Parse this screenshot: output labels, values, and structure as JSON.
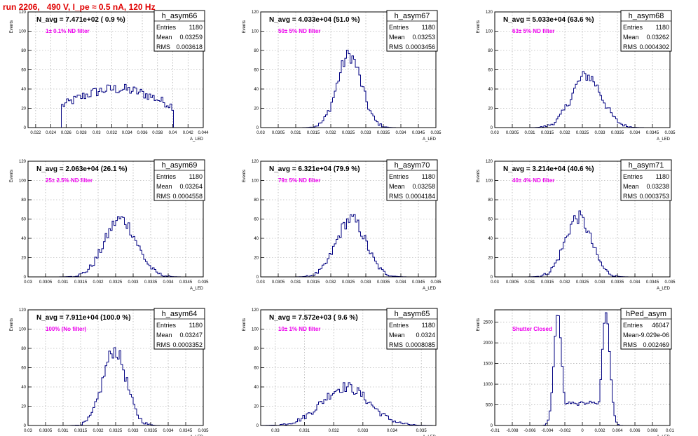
{
  "page": {
    "run_title": "run 2206,   490 V, I_pe ≈ 0.5 nA, 120 Hz"
  },
  "colors": {
    "histogram_line": "#000080",
    "frame": "#000000",
    "grid": "#9a9a9a",
    "run_title": "#e00000",
    "annotation": "#ee00ee",
    "navg": "#000000"
  },
  "chart_data": [
    {
      "type": "histogram",
      "name": "h_asym66",
      "ylabel": "Events",
      "xlabel": "A_LED",
      "navg": "N_avg = 7.471e+02 ( 0.9 %)",
      "annotation": "1± 0.1% ND filter",
      "stats": {
        "entries_label": "Entries",
        "entries": "1180",
        "mean_label": "Mean",
        "mean": "0.03259",
        "rms_label": "RMS",
        "rms": "0.003618"
      },
      "xlim": [
        0.021,
        0.044
      ],
      "xticks": [
        "0.022",
        "0.024",
        "0.026",
        "0.028",
        "0.03",
        "0.032",
        "0.034",
        "0.036",
        "0.038",
        "0.04",
        "0.042",
        "0.044"
      ],
      "ylim": [
        0,
        120
      ],
      "yticks": [
        "0",
        "20",
        "40",
        "60",
        "80",
        "100",
        "120"
      ],
      "shape": {
        "kind": "uniform",
        "lo": 0.0253,
        "hi": 0.04,
        "peak": 40
      }
    },
    {
      "type": "histogram",
      "name": "h_asym67",
      "ylabel": "Events",
      "xlabel": "A_LED",
      "navg": "N_avg = 4.033e+04 (51.0 %)",
      "annotation": "50± 5% ND filter",
      "stats": {
        "entries_label": "Entries",
        "entries": "1180",
        "mean_label": "Mean",
        "mean": "0.03253",
        "rms_label": "RMS",
        "rms": "0.0003456"
      },
      "xlim": [
        0.03,
        0.035
      ],
      "xticks": [
        "0.03",
        "0.0305",
        "0.031",
        "0.0315",
        "0.032",
        "0.0325",
        "0.033",
        "0.0335",
        "0.034",
        "0.0345",
        "0.035"
      ],
      "ylim": [
        0,
        120
      ],
      "yticks": [
        "0",
        "20",
        "40",
        "60",
        "80",
        "100",
        "120"
      ],
      "shape": {
        "kind": "gauss",
        "mean": 0.03253,
        "sigma": 0.0003456,
        "peak": 75
      }
    },
    {
      "type": "histogram",
      "name": "h_asym68",
      "ylabel": "Events",
      "xlabel": "A_LED",
      "navg": "N_avg = 5.033e+04 (63.6 %)",
      "annotation": "63± 5% ND filter",
      "stats": {
        "entries_label": "Entries",
        "entries": "1180",
        "mean_label": "Mean",
        "mean": "0.03262",
        "rms_label": "RMS",
        "rms": "0.0004302"
      },
      "xlim": [
        0.03,
        0.035
      ],
      "xticks": [
        "0.03",
        "0.0305",
        "0.031",
        "0.0315",
        "0.032",
        "0.0325",
        "0.033",
        "0.0335",
        "0.034",
        "0.0345",
        "0.035"
      ],
      "ylim": [
        0,
        120
      ],
      "yticks": [
        "0",
        "20",
        "40",
        "60",
        "80",
        "100",
        "120"
      ],
      "shape": {
        "kind": "gauss",
        "mean": 0.03262,
        "sigma": 0.0004302,
        "peak": 54
      }
    },
    {
      "type": "histogram",
      "name": "h_asym69",
      "ylabel": "Events",
      "xlabel": "A_LED",
      "navg": "N_avg = 2.063e+04 (26.1 %)",
      "annotation": "25± 2.5% ND filter",
      "stats": {
        "entries_label": "Entries",
        "entries": "1180",
        "mean_label": "Mean",
        "mean": "0.03264",
        "rms_label": "RMS",
        "rms": "0.0004558"
      },
      "xlim": [
        0.03,
        0.035
      ],
      "xticks": [
        "0.03",
        "0.0305",
        "0.031",
        "0.0315",
        "0.032",
        "0.0325",
        "0.033",
        "0.0335",
        "0.034",
        "0.0345",
        "0.035"
      ],
      "ylim": [
        0,
        120
      ],
      "yticks": [
        "0",
        "20",
        "40",
        "60",
        "80",
        "100",
        "120"
      ],
      "shape": {
        "kind": "gauss",
        "mean": 0.03264,
        "sigma": 0.0004558,
        "peak": 60
      }
    },
    {
      "type": "histogram",
      "name": "h_asym70",
      "ylabel": "Events",
      "xlabel": "A_LED",
      "navg": "N_avg = 6.321e+04 (79.9 %)",
      "annotation": "79± 5% ND filter",
      "stats": {
        "entries_label": "Entries",
        "entries": "1180",
        "mean_label": "Mean",
        "mean": "0.03258",
        "rms_label": "RMS",
        "rms": "0.0004184"
      },
      "xlim": [
        0.03,
        0.035
      ],
      "xticks": [
        "0.03",
        "0.0305",
        "0.031",
        "0.0315",
        "0.032",
        "0.0325",
        "0.033",
        "0.0335",
        "0.034",
        "0.0345",
        "0.035"
      ],
      "ylim": [
        0,
        120
      ],
      "yticks": [
        "0",
        "20",
        "40",
        "60",
        "80",
        "100",
        "120"
      ],
      "shape": {
        "kind": "gauss",
        "mean": 0.03258,
        "sigma": 0.0004184,
        "peak": 60
      }
    },
    {
      "type": "histogram",
      "name": "h_asym71",
      "ylabel": "Events",
      "xlabel": "A_LED",
      "navg": "N_avg = 3.214e+04 (40.6 %)",
      "annotation": "40± 4% ND filter",
      "stats": {
        "entries_label": "Entries",
        "entries": "1180",
        "mean_label": "Mean",
        "mean": "0.03238",
        "rms_label": "RMS",
        "rms": "0.0003753"
      },
      "xlim": [
        0.03,
        0.035
      ],
      "xticks": [
        "0.03",
        "0.0305",
        "0.031",
        "0.0315",
        "0.032",
        "0.0325",
        "0.033",
        "0.0335",
        "0.034",
        "0.0345",
        "0.035"
      ],
      "ylim": [
        0,
        120
      ],
      "yticks": [
        "0",
        "20",
        "40",
        "60",
        "80",
        "100",
        "120"
      ],
      "shape": {
        "kind": "gauss",
        "mean": 0.03238,
        "sigma": 0.0003753,
        "peak": 62
      }
    },
    {
      "type": "histogram",
      "name": "h_asym64",
      "ylabel": "Events",
      "xlabel": "A_LED",
      "navg": "N_avg = 7.911e+04 (100.0 %)",
      "annotation": "100% (No filter)",
      "stats": {
        "entries_label": "Entries",
        "entries": "1180",
        "mean_label": "Mean",
        "mean": "0.03247",
        "rms_label": "RMS",
        "rms": "0.0003352"
      },
      "xlim": [
        0.03,
        0.035
      ],
      "xticks": [
        "0.03",
        "0.0305",
        "0.031",
        "0.0315",
        "0.032",
        "0.0325",
        "0.033",
        "0.0335",
        "0.034",
        "0.0345",
        "0.035"
      ],
      "ylim": [
        0,
        120
      ],
      "yticks": [
        "0",
        "20",
        "40",
        "60",
        "80",
        "100",
        "120"
      ],
      "shape": {
        "kind": "gauss",
        "mean": 0.03247,
        "sigma": 0.0003352,
        "peak": 78
      }
    },
    {
      "type": "histogram",
      "name": "h_asym65",
      "ylabel": "Events",
      "xlabel": "A_LED",
      "navg": "N_avg = 7.572e+03 ( 9.6 %)",
      "annotation": "10± 1% ND filter",
      "stats": {
        "entries_label": "Entries",
        "entries": "1180",
        "mean_label": "Mean",
        "mean": "0.0324",
        "rms_label": "RMS",
        "rms": "0.0008085"
      },
      "xlim": [
        0.0295,
        0.0355
      ],
      "xticks": [
        "0.03",
        "0.031",
        "0.032",
        "0.033",
        "0.034",
        "0.035"
      ],
      "ylim": [
        0,
        120
      ],
      "yticks": [
        "0",
        "20",
        "40",
        "60",
        "80",
        "100",
        "120"
      ],
      "shape": {
        "kind": "gauss",
        "mean": 0.0324,
        "sigma": 0.0008085,
        "peak": 40
      }
    },
    {
      "type": "histogram",
      "name": "hPed_asym",
      "ylabel": "Events",
      "xlabel": "A_LED",
      "navg": "",
      "annotation": "Shutter Closed",
      "stats": {
        "entries_label": "Entries",
        "entries": "46047",
        "mean_label": "Mean",
        "mean": "-9.029e-06",
        "rms_label": "RMS",
        "rms": "0.002469"
      },
      "xlim": [
        -0.01,
        0.01
      ],
      "xticks": [
        "-0.01",
        "-0.008",
        "-0.006",
        "-0.004",
        "-0.002",
        "0",
        "0.002",
        "0.004",
        "0.006",
        "0.008",
        "0.01"
      ],
      "ylim": [
        0,
        2800
      ],
      "yticks": [
        "0",
        "500",
        "1000",
        "1500",
        "2000",
        "2500"
      ],
      "shape": {
        "kind": "double",
        "m1": -0.0028,
        "m2": 0.0027,
        "s": 0.00045,
        "peak": 2700,
        "floor": 550
      }
    }
  ]
}
